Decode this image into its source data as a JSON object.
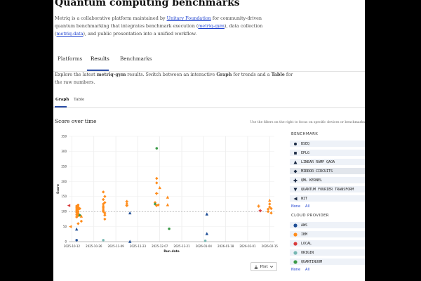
{
  "header": {
    "title": "Quantum computing benchmarks",
    "intro": {
      "part1": "Metriq is a collaborative platform maintained by ",
      "link1": "Unitary Foundation",
      "part2": " for community-driven quantum benchmarking that integrates benchmark execution (",
      "link2": "metriq-gym",
      "part3": "), data collection (",
      "link3": "metriq-data",
      "part4": "), and public presentation into a unified workflow."
    }
  },
  "tabs": [
    {
      "label": "Platforms",
      "active": false
    },
    {
      "label": "Results",
      "active": true
    },
    {
      "label": "Benchmarks",
      "active": false
    }
  ],
  "explore": {
    "part1": "Explore the latest ",
    "bold1": "metriq-gym",
    "part2": " results. Switch between an interactive ",
    "bold2": "Graph",
    "part3": " for trends and a ",
    "bold3": "Table",
    "part4": " for the raw numbers."
  },
  "view_tabs": [
    {
      "label": "Graph",
      "active": true
    },
    {
      "label": "Table",
      "active": false
    }
  ],
  "section_title": "Score over time",
  "filter_hint": "Use the filters on the right to focus on specific devices or benchmarks",
  "plot_button": {
    "label": "Plot",
    "icon": "download-icon"
  },
  "filters": {
    "benchmark_heading": "BENCHMARK",
    "benchmarks": [
      {
        "label": "BSEQ",
        "marker": "circle"
      },
      {
        "label": "EPLG",
        "marker": "square"
      },
      {
        "label": "LINEAR RAMP QAOA",
        "marker": "triangle-up"
      },
      {
        "label": "MIRROR CIRCUITS",
        "marker": "diamond"
      },
      {
        "label": "QML KERNEL",
        "marker": "plus"
      },
      {
        "label": "QUANTUM FOURIER TRANSFORM",
        "marker": "triangle-down"
      },
      {
        "label": "WIT",
        "marker": "triangle-left"
      }
    ],
    "provider_heading": "CLOUD PROVIDER",
    "providers": [
      {
        "label": "AWS",
        "color": "#1f4e96"
      },
      {
        "label": "IBM",
        "color": "#ff8c1a"
      },
      {
        "label": "LOCAL",
        "color": "#d83a3a"
      },
      {
        "label": "ORIGIN",
        "color": "#76b7b2"
      },
      {
        "label": "QUANTINUUM",
        "color": "#3a9a47"
      }
    ],
    "none_label": "None",
    "all_label": "All"
  },
  "chart_data": {
    "type": "scatter",
    "xlabel": "Run date",
    "ylabel": "Score",
    "x_ticks": [
      "2025-10-12",
      "2025-10-26",
      "2025-11-09",
      "2025-11-23",
      "2025-12-07",
      "2025-12-21",
      "2026-01-04",
      "2026-01-18",
      "2026-02-01",
      "2026-02-15"
    ],
    "y_ticks": [
      0,
      50,
      100,
      150,
      200,
      250,
      300,
      350
    ],
    "ylim": [
      0,
      350
    ],
    "xlim": [
      "2025-10-10",
      "2026-02-18"
    ],
    "grid": true,
    "reference_line": 100,
    "points": [
      {
        "x": "2025-10-10",
        "y": 120,
        "provider": "LOCAL",
        "marker": "triangle-left"
      },
      {
        "x": "2025-10-11",
        "y": 50,
        "provider": "IBM",
        "marker": "triangle-left"
      },
      {
        "x": "2025-10-15",
        "y": 5,
        "provider": "AWS",
        "marker": "circle"
      },
      {
        "x": "2025-10-15",
        "y": 42,
        "provider": "AWS",
        "marker": "triangle-up"
      },
      {
        "x": "2025-10-15",
        "y": 118,
        "provider": "IBM",
        "marker": "circle"
      },
      {
        "x": "2025-10-15",
        "y": 112,
        "provider": "IBM",
        "marker": "circle"
      },
      {
        "x": "2025-10-15",
        "y": 105,
        "provider": "IBM",
        "marker": "circle"
      },
      {
        "x": "2025-10-15",
        "y": 98,
        "provider": "IBM",
        "marker": "circle"
      },
      {
        "x": "2025-10-15",
        "y": 90,
        "provider": "IBM",
        "marker": "circle"
      },
      {
        "x": "2025-10-15",
        "y": 82,
        "provider": "IBM",
        "marker": "circle"
      },
      {
        "x": "2025-10-16",
        "y": 122,
        "provider": "IBM",
        "marker": "circle"
      },
      {
        "x": "2025-10-16",
        "y": 115,
        "provider": "IBM",
        "marker": "circle"
      },
      {
        "x": "2025-10-16",
        "y": 108,
        "provider": "IBM",
        "marker": "circle"
      },
      {
        "x": "2025-10-16",
        "y": 100,
        "provider": "IBM",
        "marker": "circle"
      },
      {
        "x": "2025-10-16",
        "y": 93,
        "provider": "IBM",
        "marker": "circle"
      },
      {
        "x": "2025-10-16",
        "y": 86,
        "provider": "IBM",
        "marker": "circle"
      },
      {
        "x": "2025-10-16",
        "y": 60,
        "provider": "IBM",
        "marker": "diamond"
      },
      {
        "x": "2025-10-17",
        "y": 110,
        "provider": "IBM",
        "marker": "diamond"
      },
      {
        "x": "2025-10-17",
        "y": 88,
        "provider": "QUANTINUUM",
        "marker": "diamond"
      },
      {
        "x": "2025-10-18",
        "y": 68,
        "provider": "IBM",
        "marker": "diamond"
      },
      {
        "x": "2025-10-18",
        "y": 85,
        "provider": "IBM",
        "marker": "triangle-up"
      },
      {
        "x": "2025-11-01",
        "y": 165,
        "provider": "IBM",
        "marker": "diamond"
      },
      {
        "x": "2025-11-01",
        "y": 140,
        "provider": "IBM",
        "marker": "diamond"
      },
      {
        "x": "2025-11-01",
        "y": 125,
        "provider": "IBM",
        "marker": "diamond"
      },
      {
        "x": "2025-11-01",
        "y": 118,
        "provider": "IBM",
        "marker": "diamond"
      },
      {
        "x": "2025-11-01",
        "y": 112,
        "provider": "IBM",
        "marker": "diamond"
      },
      {
        "x": "2025-11-01",
        "y": 105,
        "provider": "IBM",
        "marker": "diamond"
      },
      {
        "x": "2025-11-01",
        "y": 100,
        "provider": "IBM",
        "marker": "diamond"
      },
      {
        "x": "2025-11-02",
        "y": 95,
        "provider": "IBM",
        "marker": "diamond"
      },
      {
        "x": "2025-11-02",
        "y": 88,
        "provider": "IBM",
        "marker": "diamond"
      },
      {
        "x": "2025-11-02",
        "y": 75,
        "provider": "IBM",
        "marker": "diamond"
      },
      {
        "x": "2025-11-02",
        "y": 150,
        "provider": "IBM",
        "marker": "diamond"
      },
      {
        "x": "2025-11-02",
        "y": 130,
        "provider": "IBM",
        "marker": "diamond"
      },
      {
        "x": "2025-11-01",
        "y": 5,
        "provider": "ORIGIN",
        "marker": "circle"
      },
      {
        "x": "2025-11-16",
        "y": 133,
        "provider": "IBM",
        "marker": "plus"
      },
      {
        "x": "2025-11-16",
        "y": 128,
        "provider": "IBM",
        "marker": "triangle-up"
      },
      {
        "x": "2025-11-16",
        "y": 120,
        "provider": "IBM",
        "marker": "plus"
      },
      {
        "x": "2025-11-18",
        "y": 1,
        "provider": "AWS",
        "marker": "triangle-up"
      },
      {
        "x": "2025-11-18",
        "y": 96,
        "provider": "AWS",
        "marker": "triangle-up"
      },
      {
        "x": "2025-12-04",
        "y": 130,
        "provider": "IBM",
        "marker": "diamond"
      },
      {
        "x": "2025-12-04",
        "y": 125,
        "provider": "QUANTINUUM",
        "marker": "diamond"
      },
      {
        "x": "2025-12-05",
        "y": 310,
        "provider": "QUANTINUUM",
        "marker": "circle"
      },
      {
        "x": "2025-12-05",
        "y": 210,
        "provider": "IBM",
        "marker": "diamond"
      },
      {
        "x": "2025-12-05",
        "y": 195,
        "provider": "IBM",
        "marker": "diamond"
      },
      {
        "x": "2025-12-05",
        "y": 160,
        "provider": "IBM",
        "marker": "plus"
      },
      {
        "x": "2025-12-05",
        "y": 120,
        "provider": "IBM",
        "marker": "plus"
      },
      {
        "x": "2025-12-06",
        "y": 122,
        "provider": "IBM",
        "marker": "diamond"
      },
      {
        "x": "2025-12-07",
        "y": 180,
        "provider": "IBM",
        "marker": "triangle-up"
      },
      {
        "x": "2025-12-12",
        "y": 148,
        "provider": "IBM",
        "marker": "triangle-up"
      },
      {
        "x": "2025-12-12",
        "y": 123,
        "provider": "IBM",
        "marker": "triangle-up"
      },
      {
        "x": "2025-12-13",
        "y": 43,
        "provider": "QUANTINUUM",
        "marker": "circle"
      },
      {
        "x": "2026-01-06",
        "y": 92,
        "provider": "AWS",
        "marker": "triangle-up"
      },
      {
        "x": "2026-01-06",
        "y": 27,
        "provider": "AWS",
        "marker": "triangle-up"
      },
      {
        "x": "2026-01-05",
        "y": 3,
        "provider": "ORIGIN",
        "marker": "circle"
      },
      {
        "x": "2026-02-08",
        "y": 118,
        "provider": "IBM",
        "marker": "plus"
      },
      {
        "x": "2026-02-09",
        "y": 103,
        "provider": "LOCAL",
        "marker": "plus"
      },
      {
        "x": "2026-02-14",
        "y": 108,
        "provider": "IBM",
        "marker": "diamond"
      },
      {
        "x": "2026-02-14",
        "y": 100,
        "provider": "IBM",
        "marker": "diamond"
      },
      {
        "x": "2026-02-15",
        "y": 138,
        "provider": "IBM",
        "marker": "triangle-up"
      },
      {
        "x": "2026-02-15",
        "y": 125,
        "provider": "IBM",
        "marker": "diamond"
      },
      {
        "x": "2026-02-15",
        "y": 115,
        "provider": "IBM",
        "marker": "diamond"
      },
      {
        "x": "2026-02-16",
        "y": 95,
        "provider": "IBM",
        "marker": "diamond"
      },
      {
        "x": "2026-02-16",
        "y": 110,
        "provider": "IBM",
        "marker": "diamond"
      }
    ]
  }
}
